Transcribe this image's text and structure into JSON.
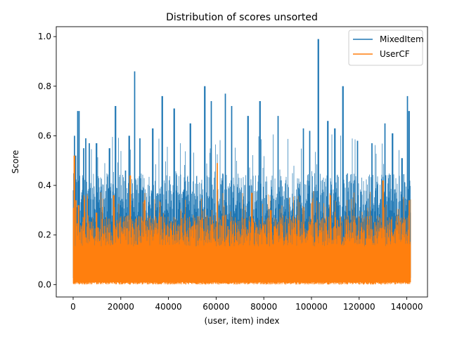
{
  "chart_data": {
    "type": "line",
    "title": "Distribution of scores unsorted",
    "xlabel": "(user, item) index",
    "ylabel": "Score",
    "xlim": [
      -7080,
      148680
    ],
    "ylim": [
      -0.05,
      1.04
    ],
    "xticks": [
      0,
      20000,
      40000,
      60000,
      80000,
      100000,
      120000,
      140000
    ],
    "yticks": [
      0.0,
      0.2,
      0.4,
      0.6,
      0.8,
      1.0
    ],
    "xtick_labels": [
      "0",
      "20000",
      "40000",
      "60000",
      "80000",
      "100000",
      "120000",
      "140000"
    ],
    "ytick_labels": [
      "0.0",
      "0.2",
      "0.4",
      "0.6",
      "0.8",
      "1.0"
    ],
    "legend_position": "top-right",
    "grid": false,
    "n_points": 141600,
    "series": [
      {
        "name": "MixedItem",
        "color": "#1f77b4",
        "envelope_floor": 0.02,
        "typical_max": 0.45,
        "peaks": [
          {
            "x": 0,
            "y": 0.16
          },
          {
            "x": 300,
            "y": 0.31
          },
          {
            "x": 600,
            "y": 0.6
          },
          {
            "x": 1000,
            "y": 0.52
          },
          {
            "x": 1900,
            "y": 0.7
          },
          {
            "x": 2500,
            "y": 0.7
          },
          {
            "x": 4400,
            "y": 0.55
          },
          {
            "x": 5300,
            "y": 0.59
          },
          {
            "x": 6800,
            "y": 0.57
          },
          {
            "x": 9800,
            "y": 0.57
          },
          {
            "x": 15300,
            "y": 0.55
          },
          {
            "x": 17800,
            "y": 0.72
          },
          {
            "x": 22000,
            "y": 0.46
          },
          {
            "x": 23500,
            "y": 0.6
          },
          {
            "x": 25800,
            "y": 0.86
          },
          {
            "x": 28000,
            "y": 0.59
          },
          {
            "x": 33400,
            "y": 0.63
          },
          {
            "x": 37400,
            "y": 0.76
          },
          {
            "x": 42400,
            "y": 0.71
          },
          {
            "x": 49200,
            "y": 0.65
          },
          {
            "x": 55200,
            "y": 0.8
          },
          {
            "x": 58000,
            "y": 0.74
          },
          {
            "x": 63900,
            "y": 0.77
          },
          {
            "x": 66500,
            "y": 0.72
          },
          {
            "x": 73400,
            "y": 0.68
          },
          {
            "x": 78400,
            "y": 0.74
          },
          {
            "x": 86000,
            "y": 0.68
          },
          {
            "x": 96600,
            "y": 0.63
          },
          {
            "x": 99300,
            "y": 0.62
          },
          {
            "x": 102900,
            "y": 0.99
          },
          {
            "x": 106900,
            "y": 0.66
          },
          {
            "x": 109800,
            "y": 0.63
          },
          {
            "x": 113200,
            "y": 0.8
          },
          {
            "x": 119300,
            "y": 0.58
          },
          {
            "x": 125400,
            "y": 0.57
          },
          {
            "x": 130800,
            "y": 0.65
          },
          {
            "x": 134000,
            "y": 0.61
          },
          {
            "x": 138000,
            "y": 0.51
          },
          {
            "x": 140300,
            "y": 0.76
          },
          {
            "x": 140900,
            "y": 0.7
          }
        ]
      },
      {
        "name": "UserCF",
        "color": "#ff7f0e",
        "envelope_floor": 0.0,
        "typical_max": 0.28,
        "peaks": [
          {
            "x": 0,
            "y": 0.31
          },
          {
            "x": 500,
            "y": 0.52
          },
          {
            "x": 1200,
            "y": 0.34
          },
          {
            "x": 2300,
            "y": 0.32
          },
          {
            "x": 9800,
            "y": 0.29
          },
          {
            "x": 17000,
            "y": 0.36
          },
          {
            "x": 24000,
            "y": 0.44
          },
          {
            "x": 30000,
            "y": 0.34
          },
          {
            "x": 60500,
            "y": 0.49
          },
          {
            "x": 75000,
            "y": 0.37
          },
          {
            "x": 83000,
            "y": 0.3
          },
          {
            "x": 108000,
            "y": 0.36
          },
          {
            "x": 130000,
            "y": 0.42
          },
          {
            "x": 141000,
            "y": 0.34
          }
        ]
      }
    ]
  }
}
